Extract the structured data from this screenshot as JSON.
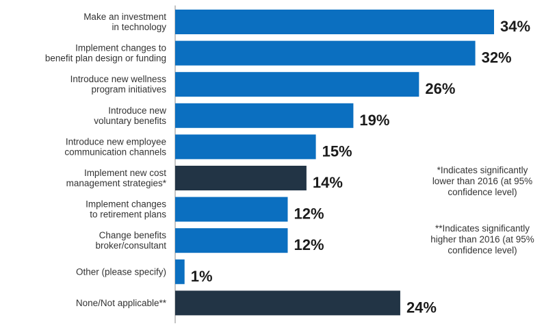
{
  "chart_data": {
    "type": "bar",
    "orientation": "horizontal",
    "categories": [
      [
        "Make an investment",
        "in technology"
      ],
      [
        "Implement changes to",
        "benefit plan design or funding"
      ],
      [
        "Introduce new wellness",
        "program initiatives"
      ],
      [
        "Introduce new",
        "voluntary benefits"
      ],
      [
        "Introduce new employee",
        "communication channels"
      ],
      [
        "Implement new cost",
        "management strategies*"
      ],
      [
        "Implement changes",
        "to retirement plans"
      ],
      [
        "Change benefits",
        "broker/consultant"
      ],
      [
        "Other (please specify)"
      ],
      [
        "None/Not applicable**"
      ]
    ],
    "values": [
      34,
      32,
      26,
      19,
      15,
      14,
      12,
      12,
      1,
      24
    ],
    "value_labels": [
      "34%",
      "32%",
      "26%",
      "19%",
      "15%",
      "14%",
      "12%",
      "12%",
      "1%",
      "24%"
    ],
    "highlighted": [
      false,
      false,
      false,
      false,
      false,
      true,
      false,
      false,
      false,
      true
    ],
    "colors": {
      "default": "#0b6fc0",
      "highlighted": "#223445"
    },
    "title": "",
    "xlabel": "",
    "ylabel": "",
    "xlim": [
      0,
      34
    ],
    "grid": false,
    "legend": "none"
  },
  "notes": [
    [
      "*Indicates significantly",
      "lower than 2016 (at 95%",
      "confidence level)"
    ],
    [
      "**Indicates significantly",
      "higher than 2016 (at 95%",
      "confidence level)"
    ]
  ]
}
